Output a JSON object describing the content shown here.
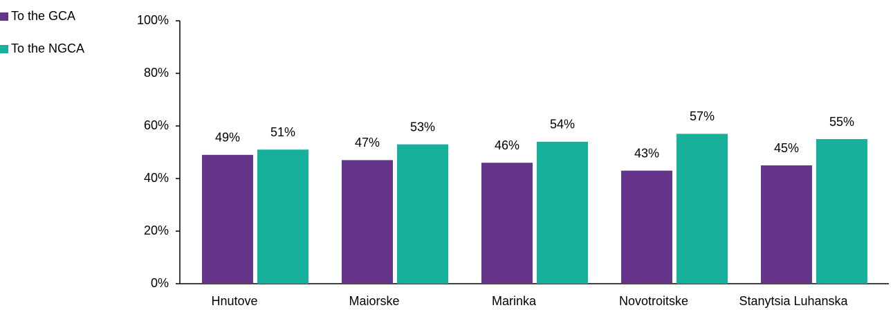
{
  "chart_data": {
    "type": "bar",
    "categories": [
      "Hnutove",
      "Maiorske",
      "Marinka",
      "Novotroitske",
      "Stanytsia Luhanska"
    ],
    "series": [
      {
        "name": "To the GCA",
        "color": "#65358a",
        "values": [
          49,
          47,
          46,
          43,
          45
        ],
        "value_labels": [
          "49%",
          "47%",
          "46%",
          "43%",
          "45%"
        ]
      },
      {
        "name": "To the NGCA",
        "color": "#17b09a",
        "values": [
          51,
          53,
          54,
          57,
          55
        ],
        "value_labels": [
          "51%",
          "53%",
          "54%",
          "57%",
          "55%"
        ]
      }
    ],
    "ylim": [
      0,
      100
    ],
    "yticks": [
      {
        "value": 0,
        "label": "0%"
      },
      {
        "value": 20,
        "label": "20%"
      },
      {
        "value": 40,
        "label": "40%"
      },
      {
        "value": 60,
        "label": "60%"
      },
      {
        "value": 80,
        "label": "80%"
      },
      {
        "value": 100,
        "label": "100%"
      }
    ],
    "legend": "top-left",
    "grid": false
  }
}
